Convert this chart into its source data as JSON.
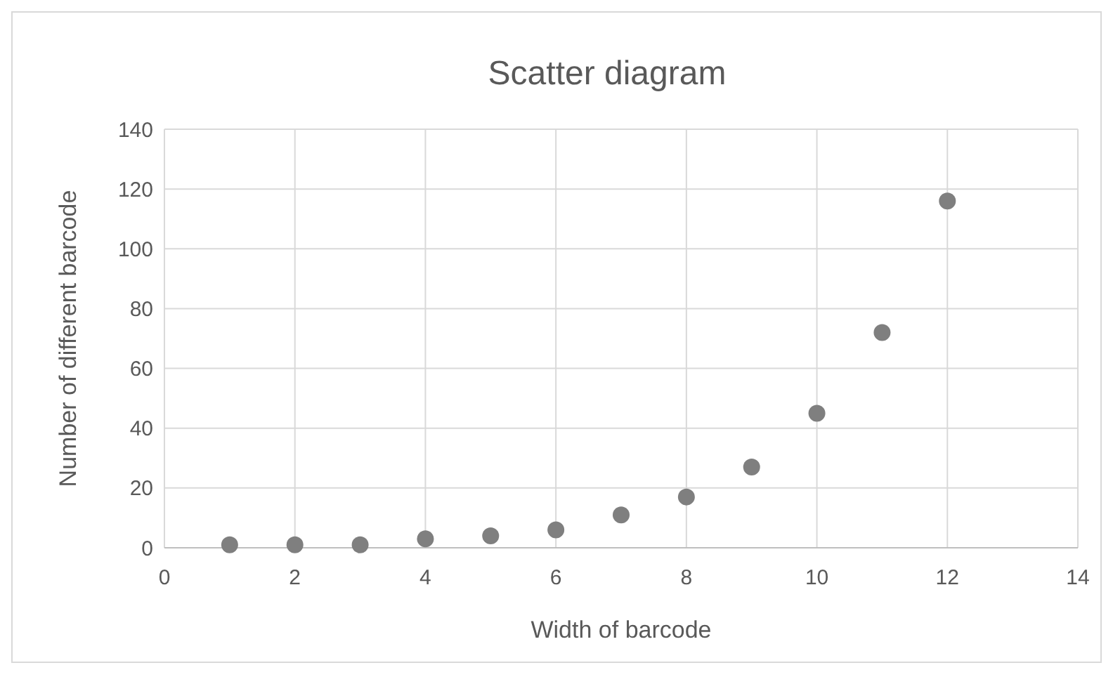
{
  "chart_data": {
    "type": "scatter",
    "title": "Scatter diagram",
    "xlabel": "Width of barcode",
    "ylabel": "Number of different barcode",
    "x": [
      1,
      2,
      3,
      4,
      5,
      6,
      7,
      8,
      9,
      10,
      11,
      12
    ],
    "series": [
      {
        "color": "#7f7f7f",
        "values": [
          1,
          1,
          1,
          3,
          4,
          6,
          11,
          17,
          27,
          45,
          72,
          116
        ]
      }
    ],
    "xlim": [
      0,
      14
    ],
    "xticks": [
      0,
      2,
      4,
      6,
      8,
      10,
      12,
      14
    ],
    "ylim": [
      0,
      140
    ],
    "yticks": [
      0,
      20,
      40,
      60,
      80,
      100,
      120,
      140
    ],
    "grid": true,
    "marker": "circle"
  }
}
